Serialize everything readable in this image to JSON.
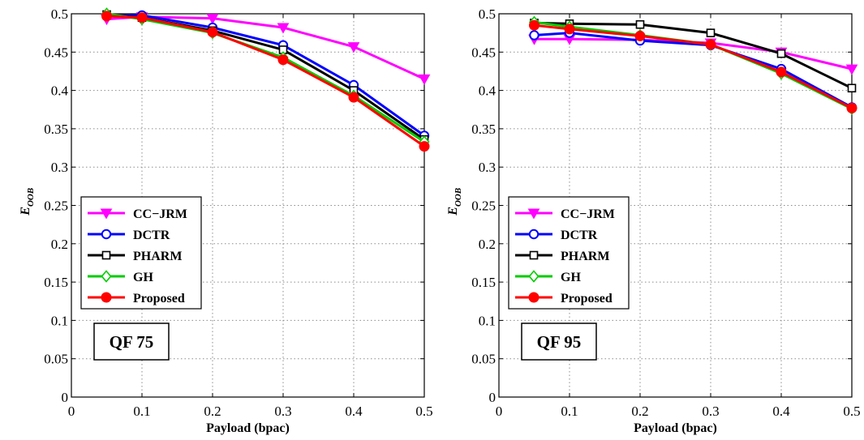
{
  "chart_data": [
    {
      "type": "line",
      "annotation": "QF 75",
      "xlabel": "Payload (bpac)",
      "ylabel": "E",
      "ylabel_sub": "OOB",
      "xlim": [
        0,
        0.5
      ],
      "ylim": [
        0,
        0.5
      ],
      "xticks": [
        "0",
        "0.1",
        "0.2",
        "0.3",
        "0.4",
        "0.5"
      ],
      "yticks": [
        "0",
        "0.05",
        "0.1",
        "0.15",
        "0.2",
        "0.25",
        "0.3",
        "0.35",
        "0.4",
        "0.45",
        "0.5"
      ],
      "grid": true,
      "legend_position": "lower-left",
      "x": [
        0.05,
        0.1,
        0.2,
        0.3,
        0.4,
        0.5
      ],
      "series": [
        {
          "name": "CC−JRM",
          "color": "#ff00ff",
          "marker": "triangle-down",
          "values": [
            0.493,
            0.496,
            0.494,
            0.482,
            0.457,
            0.415
          ]
        },
        {
          "name": "DCTR",
          "color": "#0000ff",
          "marker": "circle",
          "values": [
            0.498,
            0.498,
            0.482,
            0.459,
            0.407,
            0.341
          ]
        },
        {
          "name": "PHARM",
          "color": "#000000",
          "marker": "square",
          "values": [
            0.499,
            0.495,
            0.478,
            0.453,
            0.4,
            0.336
          ]
        },
        {
          "name": "GH",
          "color": "#00cc00",
          "marker": "diamond",
          "values": [
            0.5,
            0.493,
            0.475,
            0.443,
            0.393,
            0.333
          ]
        },
        {
          "name": "Proposed",
          "color": "#ff0000",
          "marker": "filled-circle",
          "values": [
            0.497,
            0.495,
            0.476,
            0.44,
            0.391,
            0.327
          ]
        }
      ]
    },
    {
      "type": "line",
      "annotation": "QF 95",
      "xlabel": "Payload (bpac)",
      "ylabel": "E",
      "ylabel_sub": "OOB",
      "xlim": [
        0,
        0.5
      ],
      "ylim": [
        0,
        0.5
      ],
      "xticks": [
        "0",
        "0.1",
        "0.2",
        "0.3",
        "0.4",
        "0.5"
      ],
      "yticks": [
        "0",
        "0.05",
        "0.1",
        "0.15",
        "0.2",
        "0.25",
        "0.3",
        "0.35",
        "0.4",
        "0.45",
        "0.5"
      ],
      "grid": true,
      "legend_position": "lower-left",
      "x": [
        0.05,
        0.1,
        0.2,
        0.3,
        0.4,
        0.5
      ],
      "series": [
        {
          "name": "CC−JRM",
          "color": "#ff00ff",
          "marker": "triangle-down",
          "values": [
            0.467,
            0.467,
            0.466,
            0.462,
            0.45,
            0.428
          ]
        },
        {
          "name": "DCTR",
          "color": "#0000ff",
          "marker": "circle",
          "values": [
            0.472,
            0.475,
            0.465,
            0.459,
            0.428,
            0.378
          ]
        },
        {
          "name": "PHARM",
          "color": "#000000",
          "marker": "square",
          "values": [
            0.488,
            0.487,
            0.486,
            0.475,
            0.448,
            0.403
          ]
        },
        {
          "name": "GH",
          "color": "#00cc00",
          "marker": "diamond",
          "values": [
            0.489,
            0.483,
            0.472,
            0.46,
            0.422,
            0.376
          ]
        },
        {
          "name": "Proposed",
          "color": "#ff0000",
          "marker": "filled-circle",
          "values": [
            0.485,
            0.48,
            0.471,
            0.46,
            0.424,
            0.377
          ]
        }
      ]
    }
  ]
}
